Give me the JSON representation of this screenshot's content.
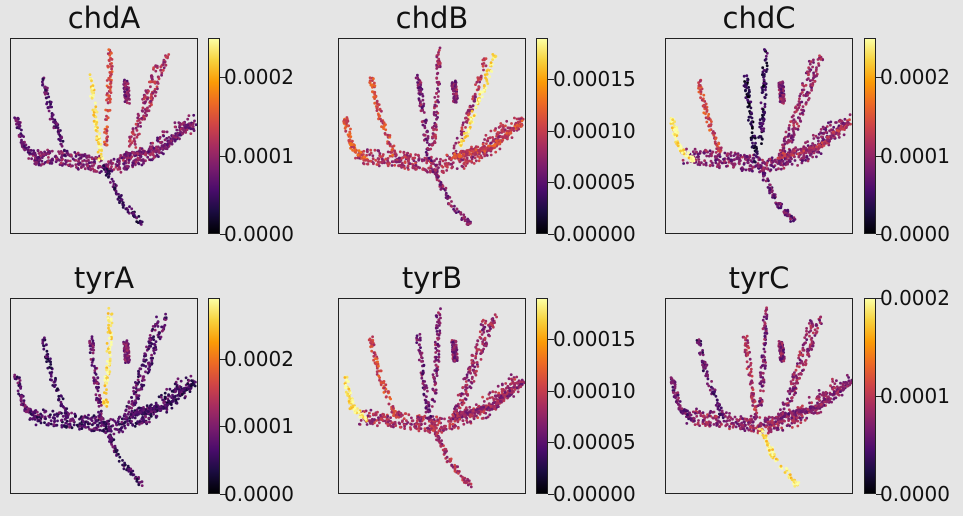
{
  "chart_data": [
    {
      "type": "scatter",
      "title": "chdA",
      "colorbar": {
        "ticks": [
          "0.0000",
          "0.0001",
          "0.0002"
        ],
        "values": [
          0,
          0.0001,
          0.0002
        ],
        "range": [
          0,
          0.00025
        ]
      },
      "colormap": "inferno",
      "highlight_branch": "top-center-left"
    },
    {
      "type": "scatter",
      "title": "chdB",
      "colorbar": {
        "ticks": [
          "0.00000",
          "0.00005",
          "0.00010",
          "0.00015"
        ],
        "values": [
          0,
          5e-05,
          0.0001,
          0.00015
        ],
        "range": [
          0,
          0.00019
        ]
      },
      "colormap": "inferno",
      "highlight_branch": "right-top"
    },
    {
      "type": "scatter",
      "title": "chdC",
      "colorbar": {
        "ticks": [
          "0.0000",
          "0.0001",
          "0.0002"
        ],
        "values": [
          0,
          0.0001,
          0.0002
        ],
        "range": [
          0,
          0.00025
        ]
      },
      "colormap": "inferno",
      "highlight_branch": "left"
    },
    {
      "type": "scatter",
      "title": "tyrA",
      "colorbar": {
        "ticks": [
          "0.0000",
          "0.0001",
          "0.0002"
        ],
        "values": [
          0,
          0.0001,
          0.0002
        ],
        "range": [
          0,
          0.00029
        ]
      },
      "colormap": "inferno",
      "highlight_branch": "top-center"
    },
    {
      "type": "scatter",
      "title": "tyrB",
      "colorbar": {
        "ticks": [
          "0.00000",
          "0.00005",
          "0.00010",
          "0.00015"
        ],
        "values": [
          0,
          5e-05,
          0.0001,
          0.00015
        ],
        "range": [
          0,
          0.00019
        ]
      },
      "colormap": "inferno",
      "highlight_branch": "left"
    },
    {
      "type": "scatter",
      "title": "tyrC",
      "colorbar": {
        "ticks": [
          "0.0000",
          "0.0001",
          "0.0002"
        ],
        "values": [
          0,
          0.0001,
          0.0002
        ],
        "range": [
          0,
          0.0002
        ]
      },
      "colormap": "inferno",
      "highlight_branch": "bottom"
    }
  ]
}
